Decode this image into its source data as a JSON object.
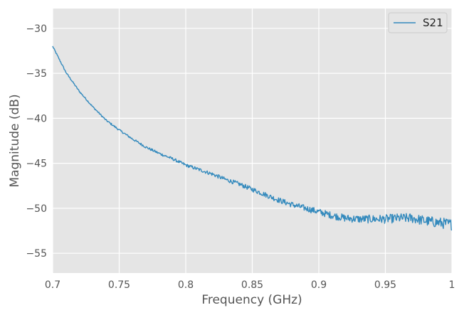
{
  "chart_data": {
    "type": "line",
    "title": "",
    "xlabel": "Frequency (GHz)",
    "ylabel": "Magnitude (dB)",
    "xlim": [
      0.7,
      1.0
    ],
    "ylim": [
      -57.2,
      -27.8
    ],
    "grid": true,
    "legend_position": "top-right",
    "x_ticks": [
      0.7,
      0.75,
      0.8,
      0.85,
      0.9,
      0.95,
      1.0
    ],
    "x_tick_labels": [
      "0.7",
      "0.75",
      "0.8",
      "0.85",
      "0.9",
      "0.95",
      "1"
    ],
    "y_ticks": [
      -30,
      -35,
      -40,
      -45,
      -50,
      -55
    ],
    "y_tick_labels": [
      "−30",
      "−35",
      "−40",
      "−45",
      "−50",
      "−55"
    ],
    "series": [
      {
        "name": "S21",
        "color": "#348abd",
        "x": [
          0.7,
          0.71,
          0.72,
          0.73,
          0.74,
          0.75,
          0.76,
          0.77,
          0.78,
          0.79,
          0.8,
          0.81,
          0.82,
          0.83,
          0.84,
          0.85,
          0.86,
          0.87,
          0.88,
          0.89,
          0.9,
          0.91,
          0.92,
          0.93,
          0.94,
          0.95,
          0.96,
          0.97,
          0.98,
          0.99,
          1.0
        ],
        "y": [
          -32.0,
          -34.9,
          -37.0,
          -38.7,
          -40.2,
          -41.3,
          -42.3,
          -43.2,
          -43.9,
          -44.5,
          -45.2,
          -45.7,
          -46.2,
          -46.8,
          -47.3,
          -47.9,
          -48.5,
          -49.1,
          -49.6,
          -50.0,
          -50.4,
          -50.8,
          -51.1,
          -51.2,
          -51.2,
          -51.2,
          -51.1,
          -51.1,
          -51.4,
          -51.6,
          -51.8
        ]
      }
    ]
  }
}
